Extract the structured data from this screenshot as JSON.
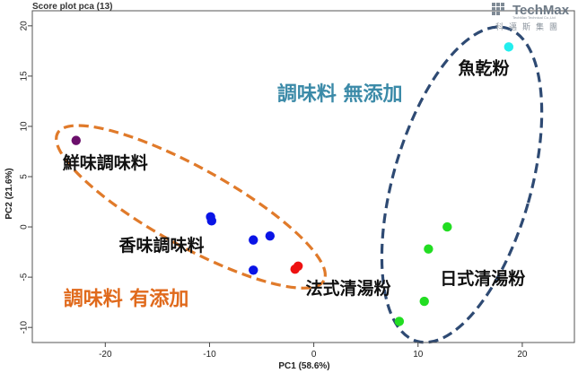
{
  "chart_data": {
    "type": "scatter",
    "title": "Score plot pca (13)",
    "xlabel": "PC1 (58.6%)",
    "ylabel": "PC2 (21.6%)",
    "xlim": [
      -27,
      25
    ],
    "ylim": [
      -11.5,
      21.5
    ],
    "xticks": [
      -20,
      -10,
      0,
      10,
      20
    ],
    "yticks": [
      -10,
      -5,
      0,
      5,
      10,
      15,
      20
    ],
    "series": [
      {
        "name": "鮮味調味料",
        "color": "#6b0f6b",
        "points": [
          [
            -22.8,
            8.6
          ]
        ]
      },
      {
        "name": "香味調味料",
        "color": "#0a14e6",
        "points": [
          [
            -9.9,
            1.0
          ],
          [
            -9.8,
            0.6
          ],
          [
            -5.8,
            -1.3
          ],
          [
            -4.2,
            -0.9
          ],
          [
            -5.8,
            -4.3
          ]
        ]
      },
      {
        "name": "法式清湯粉",
        "color": "#ee1111",
        "points": [
          [
            -1.5,
            -3.9
          ],
          [
            -1.8,
            -4.2
          ]
        ]
      },
      {
        "name": "日式清湯粉",
        "color": "#22dd22",
        "points": [
          [
            12.8,
            0.0
          ],
          [
            11.0,
            -2.2
          ],
          [
            10.6,
            -7.4
          ],
          [
            8.2,
            -9.4
          ]
        ]
      },
      {
        "name": "魚乾粉",
        "color": "#22eeee",
        "points": [
          [
            18.7,
            17.9
          ]
        ]
      }
    ],
    "annotations": [
      {
        "text": "魚乾粉",
        "x": 16.3,
        "y": 15.2
      },
      {
        "text": "鮮味調味料",
        "x": -20.0,
        "y": 5.8
      },
      {
        "text": "香味調味料",
        "x": -14.6,
        "y": -2.4
      },
      {
        "text": "法式清湯粉",
        "x": 3.3,
        "y": -6.7
      },
      {
        "text": "日式清湯粉",
        "x": 16.2,
        "y": -5.7
      }
    ],
    "group_labels": [
      {
        "text": "調味料 無添加",
        "x": 2.5,
        "y": 12.6,
        "color": "#3b8aa8"
      },
      {
        "text": "調味料 有添加",
        "x": -18.0,
        "y": -7.8,
        "color": "#e06a1c"
      }
    ],
    "ellipses": [
      {
        "label": "無添加",
        "color": "#2e4a73",
        "cx": 14.2,
        "cy": 4.2,
        "rx_units": 6.6,
        "ry_units": 16.2,
        "angle_deg": 16
      },
      {
        "label": "有添加",
        "color": "#e07a2a",
        "cx": -11.8,
        "cy": 2.0,
        "rx_units": 14.6,
        "ry_units": 3.9,
        "angle_deg": 29
      }
    ]
  },
  "logo": {
    "name": "TechMax",
    "subtitle": "TechMax Technical Co.,Ltd",
    "cjk": "科邁斯集團"
  }
}
